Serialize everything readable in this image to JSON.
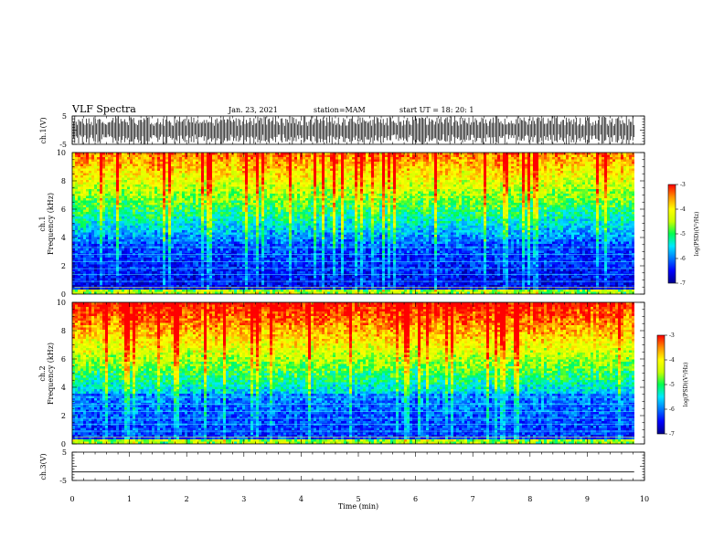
{
  "header": {
    "title": "VLF Spectra",
    "date": "Jan. 23, 2021",
    "station": "station=MAM",
    "start": "start UT =  18: 20: 1"
  },
  "chart_data": [
    {
      "type": "line",
      "panel": "ch1-waveform",
      "ylabel": "ch.1(V)",
      "xlim": [
        0,
        10
      ],
      "ylim": [
        -5,
        5
      ],
      "yticks": [
        "5",
        "-5"
      ],
      "description_values": {
        "amplitude_range": [
          -5,
          5
        ],
        "data_extent_min": 9.82
      }
    },
    {
      "type": "heatmap",
      "panel": "ch1-spectrogram",
      "ylabel": "ch.1\nFrequency (kHz)",
      "ylabel_lines": [
        "ch.1",
        "Frequency (kHz)"
      ],
      "xlim": [
        0,
        10
      ],
      "ylim": [
        0,
        10
      ],
      "yticks": [
        "0",
        "2",
        "4",
        "6",
        "8",
        "10"
      ],
      "colorbar": {
        "label": "log(PSD)(V²/Hz)",
        "range": [
          -7,
          -3
        ],
        "ticks": [
          "-3",
          "-4",
          "-5",
          "-6",
          "-7"
        ]
      }
    },
    {
      "type": "heatmap",
      "panel": "ch2-spectrogram",
      "ylabel": "ch.2\nFrequency (kHz)",
      "ylabel_lines": [
        "ch.2",
        "Frequency (kHz)"
      ],
      "xlim": [
        0,
        10
      ],
      "ylim": [
        0,
        10
      ],
      "yticks": [
        "0",
        "2",
        "4",
        "6",
        "8",
        "10"
      ],
      "colorbar": {
        "label": "log(PSD)(V²/Hz)",
        "range": [
          -7,
          -3
        ],
        "ticks": [
          "-3",
          "-4",
          "-5",
          "-6",
          "-7"
        ]
      }
    },
    {
      "type": "line",
      "panel": "ch3-waveform",
      "ylabel": "ch.3(V)",
      "xlim": [
        0,
        10
      ],
      "ylim": [
        -5,
        5
      ],
      "yticks": [
        "5",
        "-5"
      ],
      "constant_value": -2
    }
  ],
  "xaxis": {
    "label": "Time (min)",
    "ticks": [
      "0",
      "1",
      "2",
      "3",
      "4",
      "5",
      "6",
      "7",
      "8",
      "9",
      "10"
    ]
  },
  "colormap": [
    "#00008b",
    "#0000ff",
    "#0078ff",
    "#00e8ff",
    "#00ff50",
    "#c8ff00",
    "#ffff00",
    "#ff9000",
    "#ff0000"
  ]
}
